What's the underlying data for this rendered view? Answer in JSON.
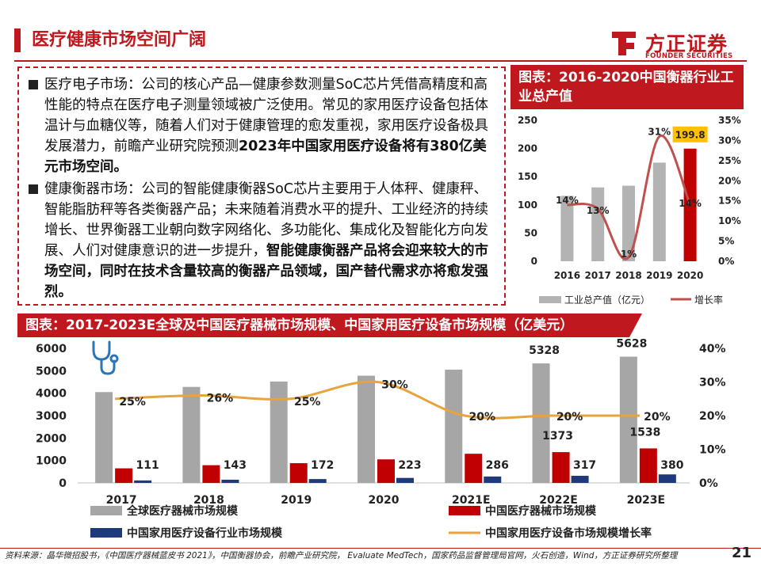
{
  "page": {
    "title": "医疗健康市场空间广阔",
    "logo_cn": "方正证券",
    "logo_en": "FOUNDER SECURITIES",
    "page_number": "21",
    "footer": "资料来源：晶华微招股书，《中国医疗器械蓝皮书 2021》，中国衡器协会，前瞻产业研究院， Evaluate MedTech，国家药品监督管理局官网，火石创造，Wind，方正证券研究所整理"
  },
  "text": {
    "p1_normal": "医疗电子市场：公司的核心产品—健康参数测量SoC芯片凭借高精度和高性能的特点在医疗电子测量领域被广泛使用。常见的家用医疗设备包括体温计与血糖仪等，随着人们对于健康管理的愈发重视，家用医疗设备极具发展潜力，前瞻产业研究院预测",
    "p1_bold": "2023年中国家用医疗设备将有380亿美元市场空间。",
    "p2_normal": "健康衡器市场：公司的智能健康衡器SoC芯片主要用于人体秤、健康秤、智能脂肪秤等各类衡器产品；未来随着消费水平的提升、工业经济的持续增长、世界衡器工业朝向数字网络化、多功能化、集成化及智能化方向发展、人们对健康意识的进一步提升，",
    "p2_bold": "智能健康衡器产品将会迎来较大的市场空间，同时在技术含量较高的衡器产品领域，国产替代需求亦将愈发强烈。"
  },
  "chart_data": [
    {
      "type": "bar",
      "title": "图表：2016-2020中国衡器行业工业总产值",
      "categories": [
        "2016",
        "2017",
        "2018",
        "2019",
        "2020"
      ],
      "series": [
        {
          "name": "工业总产值（亿元）",
          "kind": "bar",
          "axis": "left",
          "values": [
            116,
            131,
            134,
            175,
            199.8
          ],
          "color": "#b3b3b3",
          "highlight_color": "#c00000",
          "highlight_index": 4
        },
        {
          "name": "增长率",
          "kind": "line",
          "axis": "right",
          "values": [
            14,
            13,
            1,
            31,
            14
          ],
          "color": "#c0504d"
        }
      ],
      "data_labels": [
        "14%",
        "13%",
        "1%",
        "31%",
        "14%"
      ],
      "highlight_label": "199.8",
      "left_ticks": [
        "0",
        "50",
        "100",
        "150",
        "200",
        "250"
      ],
      "right_ticks": [
        "0%",
        "5%",
        "10%",
        "15%",
        "20%",
        "25%",
        "30%",
        "35%"
      ],
      "ylim": [
        0,
        250
      ],
      "y2lim": [
        0,
        35
      ],
      "legend": "bottom"
    },
    {
      "type": "bar",
      "title": "图表：2017-2023E全球及中国医疗器械市场规模、中国家用医疗设备市场规模（亿美元）",
      "categories": [
        "2017",
        "2018",
        "2019",
        "2020",
        "2021E",
        "2022E",
        "2023E"
      ],
      "series": [
        {
          "name": "全球医疗器械市场规模",
          "kind": "bar",
          "axis": "left",
          "values": [
            4050,
            4280,
            4520,
            4780,
            5050,
            5328,
            5628
          ],
          "color": "#a6a6a6"
        },
        {
          "name": "中国医疗器械市场规模",
          "kind": "bar",
          "axis": "left",
          "values": [
            650,
            790,
            880,
            1050,
            1300,
            1373,
            1538
          ],
          "color": "#c00000"
        },
        {
          "name": "中国家用医疗设备行业市场规模",
          "kind": "bar",
          "axis": "left",
          "values": [
            111,
            143,
            172,
            223,
            286,
            317,
            380
          ],
          "color": "#1f3a7a"
        },
        {
          "name": "中国家用医疗设备市场规模增长率",
          "kind": "line",
          "axis": "right",
          "values": [
            25,
            26,
            25,
            30,
            20,
            20,
            20
          ],
          "color": "#e8a33b"
        }
      ],
      "labels_global": [
        "",
        "",
        "",
        "",
        "",
        "5328",
        "5628"
      ],
      "labels_china": [
        "",
        "",
        "",
        "",
        "",
        "1373",
        "1538"
      ],
      "labels_home": [
        "111",
        "143",
        "172",
        "223",
        "286",
        "317",
        "380"
      ],
      "labels_rate": [
        "25%",
        "26%",
        "25%",
        "30%",
        "20%",
        "20%",
        "20%"
      ],
      "left_ticks": [
        "0",
        "1000",
        "2000",
        "3000",
        "4000",
        "5000",
        "6000"
      ],
      "right_ticks": [
        "0%",
        "10%",
        "20%",
        "30%",
        "40%"
      ],
      "ylim": [
        0,
        6000
      ],
      "y2lim": [
        0,
        40
      ],
      "legend": "bottom"
    }
  ]
}
